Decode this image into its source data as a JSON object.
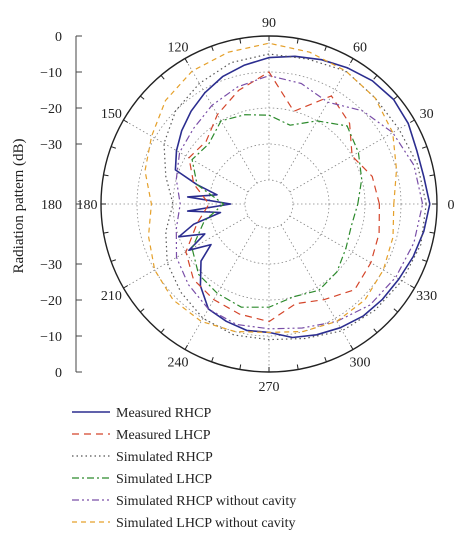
{
  "chart_data": {
    "type": "polar-line",
    "ylabel": "Radiation pattern (dB)",
    "angle_unit": "deg",
    "angle_ticks": [
      0,
      30,
      60,
      90,
      120,
      150,
      180,
      210,
      240,
      270,
      300,
      330
    ],
    "angle_tick_labels": [
      "0",
      "30",
      "60",
      "90",
      "120",
      "150",
      "180",
      "210",
      "240",
      "270",
      "300",
      "330"
    ],
    "radial_range_db": [
      -40,
      0
    ],
    "radial_tick_labels_upper": [
      "0",
      "−10",
      "−20",
      "−30",
      "180"
    ],
    "radial_tick_labels_lower": [
      "−30",
      "−20",
      "−10",
      "0"
    ],
    "grid": true,
    "legend_position": "bottom-left",
    "series": [
      {
        "name": "Measured RHCP",
        "color": "#2b2d8f",
        "dash": "solid",
        "angles": [
          0,
          10,
          20,
          30,
          40,
          50,
          60,
          70,
          80,
          90,
          100,
          110,
          120,
          130,
          140,
          150,
          160,
          165,
          170,
          175,
          180,
          185,
          190,
          195,
          200,
          205,
          210,
          215,
          220,
          230,
          240,
          250,
          260,
          270,
          280,
          290,
          300,
          310,
          320,
          330,
          340,
          350,
          360
        ],
        "values": [
          -2,
          -3,
          -3,
          -2,
          -1.5,
          -2,
          -3,
          -4,
          -5,
          -6,
          -7.5,
          -9,
          -11,
          -13,
          -15,
          -17,
          -19,
          -26,
          -32,
          -24,
          -36,
          -24,
          -33,
          -25,
          -20,
          -27,
          -21,
          -27,
          -22,
          -17,
          -13,
          -12,
          -11,
          -11,
          -9,
          -8,
          -7,
          -6,
          -5.5,
          -5,
          -4,
          -3,
          -2
        ]
      },
      {
        "name": "Measured LHCP",
        "color": "#d4452a",
        "dash": "7,5",
        "angles": [
          0,
          15,
          30,
          45,
          60,
          75,
          90,
          105,
          120,
          135,
          150,
          165,
          180,
          195,
          210,
          225,
          240,
          255,
          270,
          285,
          300,
          315,
          330,
          345,
          360
        ],
        "values": [
          -16,
          -17,
          -20,
          -15,
          -12,
          -20,
          -10,
          -14,
          -18,
          -22,
          -21,
          -25,
          -30,
          -26,
          -20,
          -17,
          -16,
          -15,
          -14,
          -18,
          -16,
          -13,
          -14,
          -15,
          -16
        ]
      },
      {
        "name": "Simulated RHCP",
        "color": "#555555",
        "dash": "1.5,3",
        "angles": [
          0,
          15,
          30,
          45,
          60,
          75,
          90,
          105,
          120,
          135,
          150,
          165,
          180,
          195,
          210,
          225,
          240,
          255,
          270,
          285,
          300,
          315,
          330,
          345,
          360
        ],
        "values": [
          -3,
          -4,
          -5,
          -5,
          -4,
          -5,
          -5,
          -6,
          -8,
          -10,
          -13,
          -17,
          -20,
          -17,
          -14,
          -12,
          -10,
          -9,
          -9,
          -8,
          -6,
          -5,
          -4,
          -3,
          -3
        ]
      },
      {
        "name": "Simulated LHCP",
        "color": "#2c8a2c",
        "dash": "7,3,2,3",
        "angles": [
          0,
          15,
          30,
          45,
          60,
          75,
          90,
          105,
          120,
          135,
          150,
          165,
          180,
          195,
          210,
          225,
          240,
          255,
          270,
          285,
          300,
          315,
          330,
          345,
          360
        ],
        "values": [
          -22,
          -20,
          -18,
          -16,
          -20,
          -24,
          -22,
          -21,
          -20,
          -23,
          -22,
          -26,
          -34,
          -28,
          -22,
          -19,
          -18,
          -17,
          -18,
          -20,
          -19,
          -20,
          -22,
          -23,
          -22
        ]
      },
      {
        "name": "Simulated RHCP without cavity",
        "color": "#7a4fa8",
        "dash": "7,3,2,3,2,3",
        "angles": [
          0,
          15,
          30,
          45,
          60,
          75,
          90,
          105,
          120,
          135,
          150,
          165,
          180,
          195,
          210,
          225,
          240,
          255,
          270,
          285,
          300,
          315,
          330,
          345,
          360
        ],
        "values": [
          -4,
          -5,
          -7,
          -10,
          -14,
          -12,
          -11,
          -13,
          -15,
          -17,
          -18,
          -20,
          -22,
          -20,
          -17,
          -15,
          -13,
          -12,
          -12,
          -11,
          -9,
          -7,
          -6,
          -5,
          -4
        ]
      },
      {
        "name": "Simulated LHCP without cavity",
        "color": "#e5a02a",
        "dash": "5,4",
        "angles": [
          0,
          15,
          30,
          45,
          60,
          75,
          90,
          105,
          120,
          135,
          150,
          165,
          180,
          195,
          210,
          225,
          240,
          255,
          270,
          285,
          300,
          315,
          330,
          345,
          360
        ],
        "values": [
          -12,
          -10,
          -7,
          -5,
          -4,
          -3,
          -2,
          -3,
          -4,
          -6,
          -9,
          -11,
          -14,
          -12,
          -10,
          -9,
          -9,
          -10,
          -11,
          -10,
          -9,
          -9,
          -10,
          -11,
          -12
        ]
      }
    ]
  }
}
